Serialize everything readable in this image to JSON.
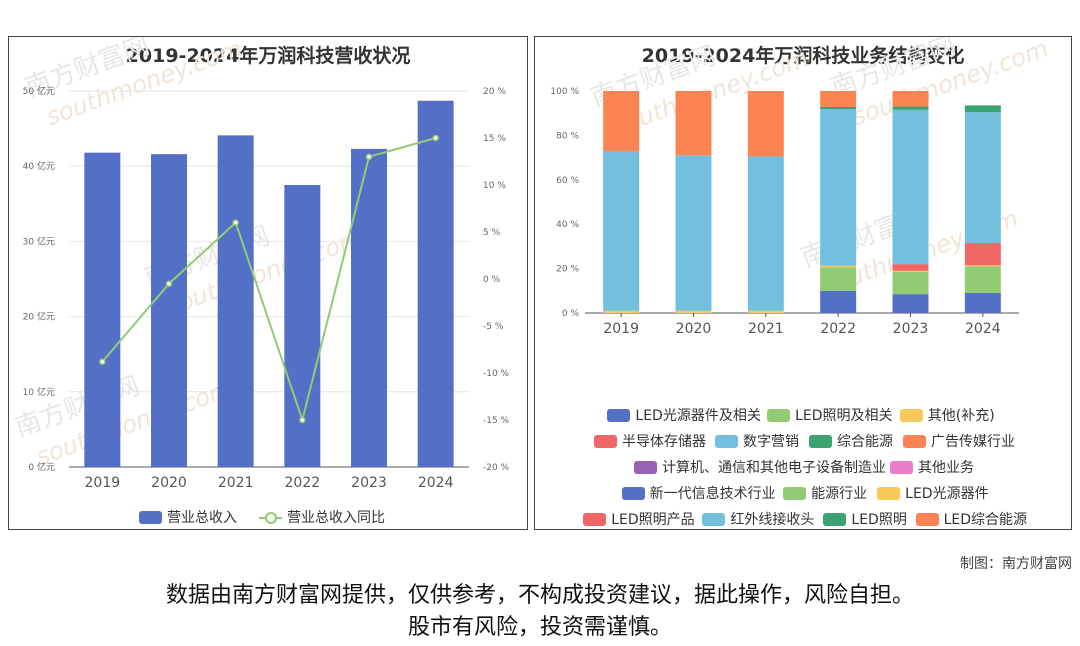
{
  "watermark": {
    "cn": "南方财富网",
    "en": "southmoney.com"
  },
  "chart_data": [
    {
      "type": "bar",
      "title": "2019-2024年万润科技营收状况",
      "categories": [
        "2019",
        "2020",
        "2021",
        "2022",
        "2023",
        "2024"
      ],
      "series": [
        {
          "name": "营业总收入",
          "kind": "bar",
          "axis": "left",
          "color": "#5470c6",
          "values": [
            41.8,
            41.6,
            44.1,
            37.5,
            42.3,
            48.7
          ]
        },
        {
          "name": "营业总收入同比",
          "kind": "line",
          "axis": "right",
          "color": "#91cc75",
          "values": [
            -8.8,
            -0.5,
            6.0,
            -15.0,
            13.0,
            15.0
          ]
        }
      ],
      "y_left": {
        "ticks": [
          "0 亿元",
          "10 亿元",
          "20 亿元",
          "30 亿元",
          "40 亿元",
          "50 亿元"
        ],
        "ylim": [
          0,
          50
        ]
      },
      "y_right": {
        "ticks": [
          "-20 %",
          "-15 %",
          "-10 %",
          "-5 %",
          "0 %",
          "5 %",
          "10 %",
          "15 %",
          "20 %"
        ],
        "ylim": [
          -20,
          20
        ]
      },
      "grid": true,
      "legend_position": "bottom"
    },
    {
      "type": "bar",
      "stacked": true,
      "title": "2019-2024年万润科技业务结构变化",
      "categories": [
        "2019",
        "2020",
        "2021",
        "2022",
        "2023",
        "2024"
      ],
      "y_ticks": [
        "0 %",
        "20 %",
        "40 %",
        "60 %",
        "80 %",
        "100 %"
      ],
      "ylim": [
        0,
        100
      ],
      "legend_position": "bottom",
      "series": [
        {
          "name": "LED光源器件及相关",
          "color": "#5470c6",
          "values": [
            0,
            0,
            0,
            10,
            8.5,
            9
          ]
        },
        {
          "name": "LED照明及相关",
          "color": "#91cc75",
          "values": [
            0,
            0,
            0,
            10.5,
            10,
            12
          ]
        },
        {
          "name": "其他(补充)",
          "color": "#fac858",
          "values": [
            1,
            1,
            1,
            0.8,
            0.5,
            0.5
          ]
        },
        {
          "name": "半导体存储器",
          "color": "#ee6666",
          "values": [
            0,
            0,
            0,
            0,
            3,
            10
          ]
        },
        {
          "name": "数字营销",
          "color": "#73c0de",
          "values": [
            72,
            70,
            69.5,
            70.5,
            69.5,
            59
          ]
        },
        {
          "name": "综合能源",
          "color": "#3ba272",
          "values": [
            0,
            0,
            0,
            1,
            1.5,
            3
          ]
        },
        {
          "name": "广告传媒行业",
          "color": "#fc8452",
          "values": [
            27,
            29,
            29.5,
            7.2,
            7,
            0
          ]
        },
        {
          "name": "计算机、通信和其他电子设备制造业",
          "color": "#9a60b4",
          "values": [
            0,
            0,
            0,
            0,
            0,
            0
          ]
        },
        {
          "name": "其他业务",
          "color": "#ea7ccc",
          "values": [
            0,
            0,
            0,
            0,
            0,
            0
          ]
        },
        {
          "name": "新一代信息技术行业",
          "color": "#5470c6",
          "values": [
            0,
            0,
            0,
            0,
            0,
            0
          ]
        },
        {
          "name": "能源行业",
          "color": "#91cc75",
          "values": [
            0,
            0,
            0,
            0,
            0,
            0
          ]
        },
        {
          "name": "LED光源器件",
          "color": "#fac858",
          "values": [
            0,
            0,
            0,
            0,
            0,
            0
          ]
        },
        {
          "name": "LED照明产品",
          "color": "#ee6666",
          "values": [
            0,
            0,
            0,
            0,
            0,
            0
          ]
        },
        {
          "name": "红外线接收头",
          "color": "#73c0de",
          "values": [
            0,
            0,
            0,
            0,
            0,
            0
          ]
        },
        {
          "name": "LED照明",
          "color": "#3ba272",
          "values": [
            0,
            0,
            0,
            0,
            0,
            0
          ]
        },
        {
          "name": "LED综合能源",
          "color": "#fc8452",
          "values": [
            0,
            0,
            0,
            0,
            0,
            0
          ]
        }
      ]
    }
  ],
  "footer": {
    "credit": "制图：南方财富网",
    "disclaimer_line1": "数据由南方财富网提供，仅供参考，不构成投资建议，据此操作，风险自担。",
    "disclaimer_line2": "股市有风险，投资需谨慎。"
  }
}
